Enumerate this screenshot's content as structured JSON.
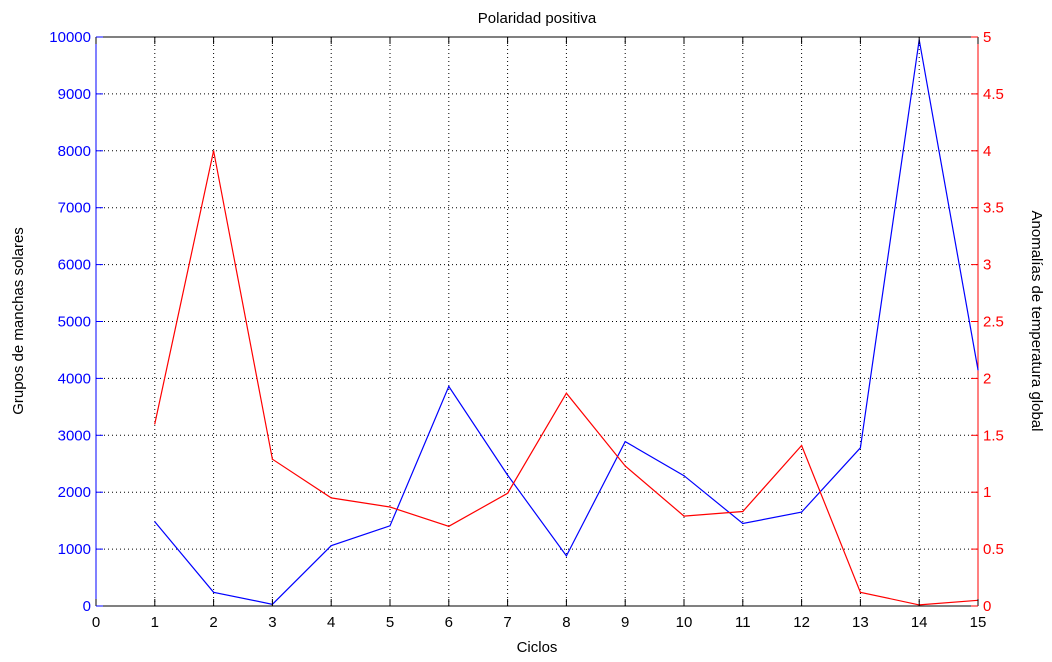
{
  "chart_data": {
    "type": "line",
    "title": "Polaridad positiva",
    "xlabel": "Ciclos",
    "ylabel_left": "Grupos de manchas solares",
    "ylabel_right": "Anomalías de temperatura global",
    "x": [
      1,
      2,
      3,
      4,
      5,
      6,
      7,
      8,
      9,
      10,
      11,
      12,
      13,
      14,
      15
    ],
    "xlim": [
      0,
      15
    ],
    "xticks": [
      "0",
      "1",
      "2",
      "3",
      "4",
      "5",
      "6",
      "7",
      "8",
      "9",
      "10",
      "11",
      "12",
      "13",
      "14",
      "15"
    ],
    "ylim_left": [
      0,
      10000
    ],
    "yticks_left": [
      "0",
      "1000",
      "2000",
      "3000",
      "4000",
      "5000",
      "6000",
      "7000",
      "8000",
      "9000",
      "10000"
    ],
    "ylim_right": [
      0,
      5
    ],
    "yticks_right": [
      "0",
      "0.5",
      "1",
      "1.5",
      "2",
      "2.5",
      "3",
      "3.5",
      "4",
      "4.5",
      "5"
    ],
    "grid": true,
    "series": [
      {
        "axis": "left",
        "color": "#0000ff",
        "values": [
          1480,
          240,
          30,
          1060,
          1410,
          3860,
          2300,
          880,
          2890,
          2290,
          1450,
          1650,
          2780,
          9950,
          4150
        ]
      },
      {
        "axis": "right",
        "color": "#ff0000",
        "values": [
          1.6,
          4.0,
          1.29,
          0.95,
          0.87,
          0.7,
          0.99,
          1.87,
          1.23,
          0.79,
          0.83,
          1.41,
          0.12,
          0.01,
          0.05
        ]
      }
    ],
    "colors": {
      "left_axis": "#0000ff",
      "right_axis": "#ff0000",
      "x_axis": "#000000",
      "grid": "#000000"
    }
  }
}
